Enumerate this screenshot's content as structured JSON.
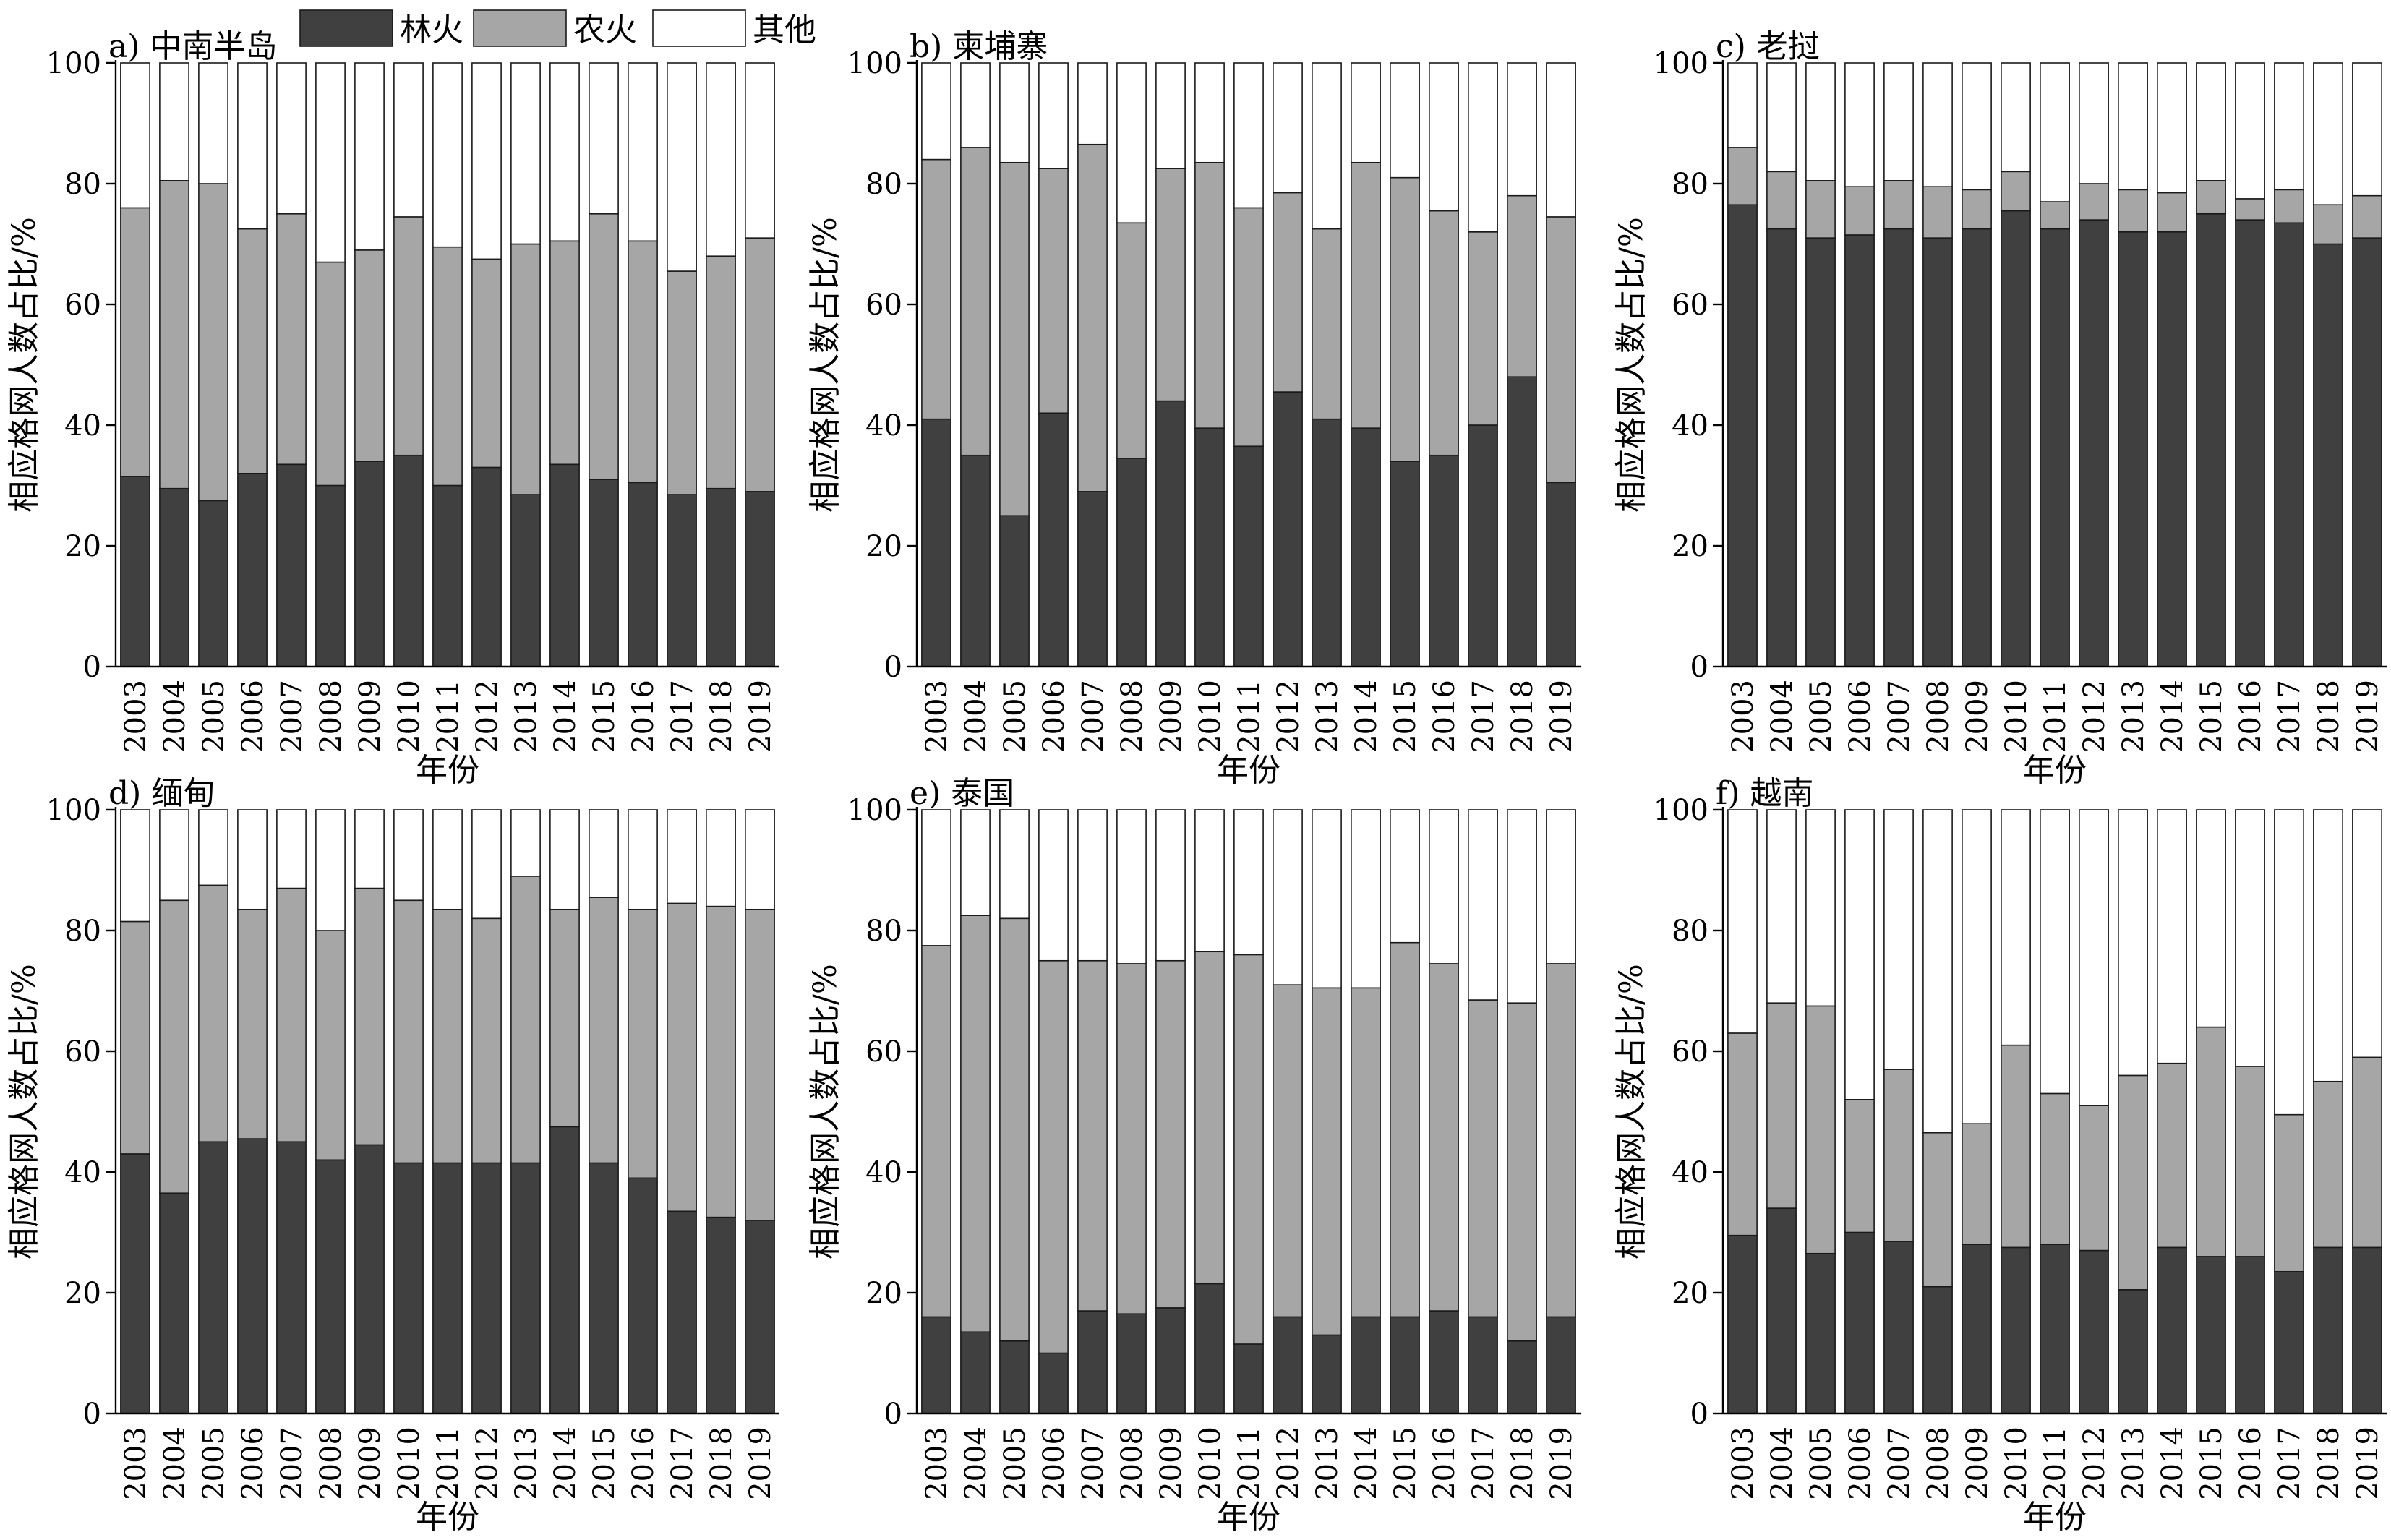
{
  "legend": {
    "items": [
      {
        "label": "林火",
        "color": "#404040"
      },
      {
        "label": "农火",
        "color": "#a6a6a6"
      },
      {
        "label": "其他",
        "color": "#ffffff"
      }
    ]
  },
  "chart_data": [
    {
      "type": "bar",
      "stacked": true,
      "title": "a) 中南半岛",
      "xlabel": "年份",
      "ylabel": "相应格网人数占比/%",
      "ylim": [
        0,
        100
      ],
      "yticks": [
        0,
        20,
        40,
        60,
        80,
        100
      ],
      "categories": [
        "2003",
        "2004",
        "2005",
        "2006",
        "2007",
        "2008",
        "2009",
        "2010",
        "2011",
        "2012",
        "2013",
        "2014",
        "2015",
        "2016",
        "2017",
        "2018",
        "2019"
      ],
      "series": [
        {
          "name": "林火",
          "values": [
            31.5,
            29.5,
            27.5,
            32,
            33.5,
            30,
            34,
            35,
            30,
            33,
            28.5,
            33.5,
            31,
            30.5,
            28.5,
            29.5,
            29
          ]
        },
        {
          "name": "农火",
          "values": [
            44.5,
            51,
            52.5,
            40.5,
            41.5,
            37,
            35,
            39.5,
            39.5,
            34.5,
            41.5,
            37,
            44,
            40,
            37,
            38.5,
            42
          ]
        },
        {
          "name": "其他",
          "values": [
            24,
            19.5,
            20,
            27.5,
            25,
            33,
            31,
            25.5,
            30.5,
            32.5,
            30,
            29.5,
            25,
            29.5,
            34.5,
            32,
            29
          ]
        }
      ]
    },
    {
      "type": "bar",
      "stacked": true,
      "title": "b) 柬埔寨",
      "xlabel": "年份",
      "ylabel": "相应格网人数占比/%",
      "ylim": [
        0,
        100
      ],
      "yticks": [
        0,
        20,
        40,
        60,
        80,
        100
      ],
      "categories": [
        "2003",
        "2004",
        "2005",
        "2006",
        "2007",
        "2008",
        "2009",
        "2010",
        "2011",
        "2012",
        "2013",
        "2014",
        "2015",
        "2016",
        "2017",
        "2018",
        "2019"
      ],
      "series": [
        {
          "name": "林火",
          "values": [
            41,
            35,
            25,
            42,
            29,
            34.5,
            44,
            39.5,
            36.5,
            45.5,
            41,
            39.5,
            34,
            35,
            40,
            48,
            30.5
          ]
        },
        {
          "name": "农火",
          "values": [
            43,
            51,
            58.5,
            40.5,
            57.5,
            39,
            38.5,
            44,
            39.5,
            33,
            31.5,
            44,
            47,
            40.5,
            32,
            30,
            44
          ]
        },
        {
          "name": "其他",
          "values": [
            16,
            14,
            16.5,
            17.5,
            13.5,
            26.5,
            17.5,
            16.5,
            24,
            21.5,
            27.5,
            16.5,
            19,
            24.5,
            28,
            22,
            25.5
          ]
        }
      ]
    },
    {
      "type": "bar",
      "stacked": true,
      "title": "c) 老挝",
      "xlabel": "年份",
      "ylabel": "相应格网人数占比/%",
      "ylim": [
        0,
        100
      ],
      "yticks": [
        0,
        20,
        40,
        60,
        80,
        100
      ],
      "categories": [
        "2003",
        "2004",
        "2005",
        "2006",
        "2007",
        "2008",
        "2009",
        "2010",
        "2011",
        "2012",
        "2013",
        "2014",
        "2015",
        "2016",
        "2017",
        "2018",
        "2019"
      ],
      "series": [
        {
          "name": "林火",
          "values": [
            76.5,
            72.5,
            71,
            71.5,
            72.5,
            71,
            72.5,
            75.5,
            72.5,
            74,
            72,
            72,
            75,
            74,
            73.5,
            70,
            71
          ]
        },
        {
          "name": "农火",
          "values": [
            9.5,
            9.5,
            9.5,
            8,
            8,
            8.5,
            6.5,
            6.5,
            4.5,
            6,
            7,
            6.5,
            5.5,
            3.5,
            5.5,
            6.5,
            7
          ]
        },
        {
          "name": "其他",
          "values": [
            14,
            18,
            19.5,
            20.5,
            19.5,
            20.5,
            21,
            18,
            23,
            20,
            21,
            21.5,
            19.5,
            22.5,
            21,
            23.5,
            22
          ]
        }
      ]
    },
    {
      "type": "bar",
      "stacked": true,
      "title": "d) 缅甸",
      "xlabel": "年份",
      "ylabel": "相应格网人数占比/%",
      "ylim": [
        0,
        100
      ],
      "yticks": [
        0,
        20,
        40,
        60,
        80,
        100
      ],
      "categories": [
        "2003",
        "2004",
        "2005",
        "2006",
        "2007",
        "2008",
        "2009",
        "2010",
        "2011",
        "2012",
        "2013",
        "2014",
        "2015",
        "2016",
        "2017",
        "2018",
        "2019"
      ],
      "series": [
        {
          "name": "林火",
          "values": [
            43,
            36.5,
            45,
            45.5,
            45,
            42,
            44.5,
            41.5,
            41.5,
            41.5,
            41.5,
            47.5,
            41.5,
            39,
            33.5,
            32.5,
            32
          ]
        },
        {
          "name": "农火",
          "values": [
            38.5,
            48.5,
            42.5,
            38,
            42,
            38,
            42.5,
            43.5,
            42,
            40.5,
            47.5,
            36,
            44,
            44.5,
            51,
            51.5,
            51.5
          ]
        },
        {
          "name": "其他",
          "values": [
            18.5,
            15,
            12.5,
            16.5,
            13,
            20,
            13,
            15,
            16.5,
            18,
            11,
            16.5,
            14.5,
            16.5,
            15.5,
            16,
            16.5
          ]
        }
      ]
    },
    {
      "type": "bar",
      "stacked": true,
      "title": "e) 泰国",
      "xlabel": "年份",
      "ylabel": "相应格网人数占比/%",
      "ylim": [
        0,
        100
      ],
      "yticks": [
        0,
        20,
        40,
        60,
        80,
        100
      ],
      "categories": [
        "2003",
        "2004",
        "2005",
        "2006",
        "2007",
        "2008",
        "2009",
        "2010",
        "2011",
        "2012",
        "2013",
        "2014",
        "2015",
        "2016",
        "2017",
        "2018",
        "2019"
      ],
      "series": [
        {
          "name": "林火",
          "values": [
            16,
            13.5,
            12,
            10,
            17,
            16.5,
            17.5,
            21.5,
            11.5,
            16,
            13,
            16,
            16,
            17,
            16,
            12,
            16
          ]
        },
        {
          "name": "农火",
          "values": [
            61.5,
            69,
            70,
            65,
            58,
            58,
            57.5,
            55,
            64.5,
            55,
            57.5,
            54.5,
            62,
            57.5,
            52.5,
            56,
            58.5
          ]
        },
        {
          "name": "其他",
          "values": [
            22.5,
            17.5,
            18,
            25,
            25,
            25.5,
            25,
            23.5,
            24,
            29,
            29.5,
            29.5,
            22,
            25.5,
            31.5,
            32,
            25.5
          ]
        }
      ]
    },
    {
      "type": "bar",
      "stacked": true,
      "title": "f) 越南",
      "xlabel": "年份",
      "ylabel": "相应格网人数占比/%",
      "ylim": [
        0,
        100
      ],
      "yticks": [
        0,
        20,
        40,
        60,
        80,
        100
      ],
      "categories": [
        "2003",
        "2004",
        "2005",
        "2006",
        "2007",
        "2008",
        "2009",
        "2010",
        "2011",
        "2012",
        "2013",
        "2014",
        "2015",
        "2016",
        "2017",
        "2018",
        "2019"
      ],
      "series": [
        {
          "name": "林火",
          "values": [
            29.5,
            34,
            26.5,
            30,
            28.5,
            21,
            28,
            27.5,
            28,
            27,
            20.5,
            27.5,
            26,
            26,
            23.5,
            27.5,
            27.5
          ]
        },
        {
          "name": "农火",
          "values": [
            33.5,
            34,
            41,
            22,
            28.5,
            25.5,
            20,
            33.5,
            25,
            24,
            35.5,
            30.5,
            38,
            31.5,
            26,
            27.5,
            31.5
          ]
        },
        {
          "name": "其他",
          "values": [
            37,
            32,
            32.5,
            48,
            43,
            53.5,
            52,
            39,
            47,
            49,
            44,
            42,
            36,
            42.5,
            50.5,
            45,
            41
          ]
        }
      ]
    }
  ]
}
